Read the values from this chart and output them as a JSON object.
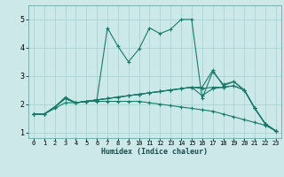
{
  "xlabel": "Humidex (Indice chaleur)",
  "background_color": "#cce8e8",
  "line_color": "#1a7a6a",
  "grid_color": "#aad4d4",
  "xlim": [
    -0.5,
    23.5
  ],
  "ylim": [
    0.8,
    5.5
  ],
  "yticks": [
    1,
    2,
    3,
    4,
    5
  ],
  "xticks": [
    0,
    1,
    2,
    3,
    4,
    5,
    6,
    7,
    8,
    9,
    10,
    11,
    12,
    13,
    14,
    15,
    16,
    17,
    18,
    19,
    20,
    21,
    22,
    23
  ],
  "lines": [
    {
      "x": [
        0,
        1,
        2,
        3,
        4,
        5,
        6,
        7,
        8,
        9,
        10,
        11,
        12,
        13,
        14,
        15,
        16,
        17,
        18,
        19,
        20,
        21,
        22,
        23
      ],
      "y": [
        1.65,
        1.65,
        1.9,
        2.25,
        2.05,
        2.1,
        2.15,
        4.7,
        4.05,
        3.5,
        3.95,
        4.7,
        4.5,
        4.65,
        5.0,
        5.0,
        2.2,
        3.15,
        2.7,
        2.8,
        2.5,
        1.85,
        1.3,
        1.05
      ]
    },
    {
      "x": [
        0,
        1,
        2,
        3,
        4,
        5,
        6,
        7,
        8,
        9,
        10,
        11,
        12,
        13,
        14,
        15,
        16,
        17,
        18,
        19,
        20,
        21,
        22,
        23
      ],
      "y": [
        1.65,
        1.65,
        1.9,
        2.2,
        2.05,
        2.1,
        2.15,
        2.2,
        2.25,
        2.3,
        2.35,
        2.4,
        2.45,
        2.5,
        2.55,
        2.6,
        2.55,
        2.6,
        2.6,
        2.65,
        2.5,
        1.85,
        1.3,
        1.05
      ]
    },
    {
      "x": [
        0,
        1,
        2,
        3,
        4,
        5,
        6,
        7,
        8,
        9,
        10,
        11,
        12,
        13,
        14,
        15,
        16,
        17,
        18,
        19,
        20,
        21,
        22,
        23
      ],
      "y": [
        1.65,
        1.65,
        1.9,
        2.2,
        2.05,
        2.1,
        2.15,
        2.2,
        2.25,
        2.3,
        2.35,
        2.4,
        2.45,
        2.5,
        2.55,
        2.6,
        2.3,
        2.55,
        2.6,
        2.65,
        2.5,
        1.85,
        1.3,
        1.05
      ]
    },
    {
      "x": [
        0,
        1,
        2,
        3,
        4,
        5,
        6,
        7,
        8,
        9,
        10,
        11,
        12,
        13,
        14,
        15,
        16,
        17,
        18,
        19,
        20,
        21,
        22,
        23
      ],
      "y": [
        1.65,
        1.65,
        1.9,
        2.2,
        2.05,
        2.1,
        2.15,
        2.2,
        2.25,
        2.3,
        2.35,
        2.4,
        2.45,
        2.5,
        2.55,
        2.6,
        2.6,
        3.2,
        2.65,
        2.8,
        2.5,
        1.85,
        1.3,
        1.05
      ]
    },
    {
      "x": [
        0,
        1,
        2,
        3,
        4,
        5,
        6,
        7,
        8,
        9,
        10,
        11,
        12,
        13,
        14,
        15,
        16,
        17,
        18,
        19,
        20,
        21,
        22,
        23
      ],
      "y": [
        1.65,
        1.65,
        1.85,
        2.05,
        2.05,
        2.1,
        2.1,
        2.1,
        2.1,
        2.1,
        2.1,
        2.05,
        2.0,
        1.95,
        1.9,
        1.85,
        1.8,
        1.75,
        1.65,
        1.55,
        1.45,
        1.35,
        1.25,
        1.05
      ]
    }
  ]
}
